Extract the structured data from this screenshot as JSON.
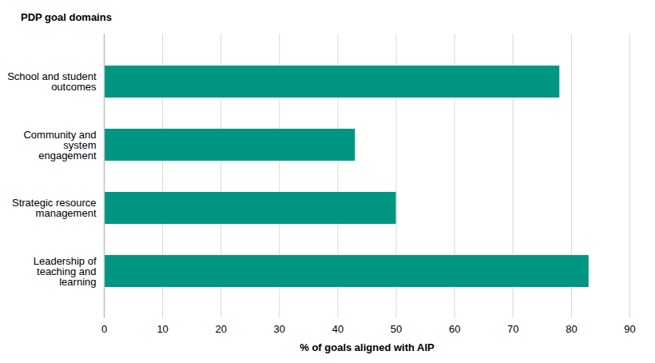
{
  "chart_data": {
    "type": "bar",
    "orientation": "horizontal",
    "ylabel": "PDP goal domains",
    "xlabel": "% of goals aligned with AIP",
    "categories": [
      "School and student outcomes",
      "Community and system engagement",
      "Strategic resource management",
      "Leadership of teaching and learning"
    ],
    "values": [
      78,
      43,
      50,
      83
    ],
    "color": "#009682",
    "xlim": [
      0,
      90
    ],
    "xticks": [
      0,
      10,
      20,
      30,
      40,
      50,
      60,
      70,
      80,
      90
    ],
    "grid": true
  }
}
